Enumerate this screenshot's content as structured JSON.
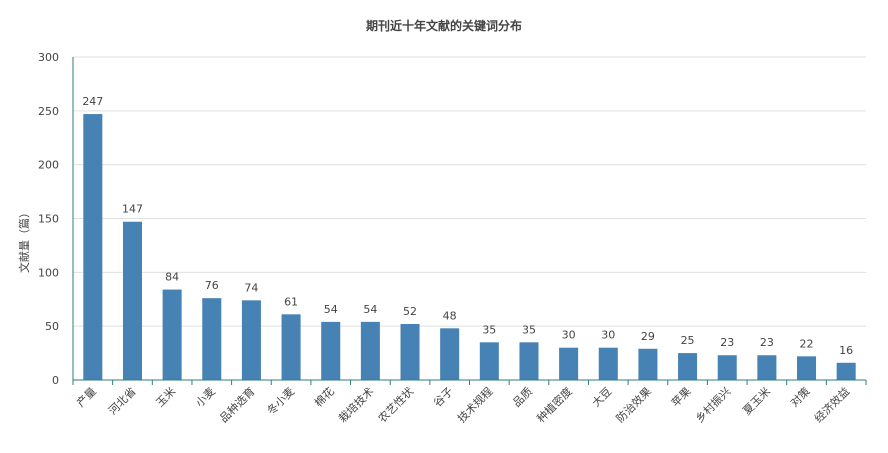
{
  "chart_data": {
    "type": "bar",
    "title": "期刊近十年文献的关键词分布",
    "xlabel": "",
    "ylabel": "文献量（篇）",
    "ylim": [
      0,
      300
    ],
    "yticks": [
      "0",
      "50",
      "100",
      "150",
      "200",
      "250",
      "300"
    ],
    "grid": true,
    "colors": {
      "bar": "#4682b4",
      "axis": "#2e7d7d",
      "grid": "#e0e0e0"
    },
    "categories": [
      "产量",
      "河北省",
      "玉米",
      "小麦",
      "品种选育",
      "冬小麦",
      "棉花",
      "栽培技术",
      "农艺性状",
      "谷子",
      "技术规程",
      "品质",
      "种植密度",
      "大豆",
      "防治效果",
      "苹果",
      "乡村振兴",
      "夏玉米",
      "对策",
      "经济效益"
    ],
    "values": [
      247,
      147,
      84,
      76,
      74,
      61,
      54,
      54,
      52,
      48,
      35,
      35,
      30,
      30,
      29,
      25,
      23,
      23,
      22,
      16
    ]
  }
}
